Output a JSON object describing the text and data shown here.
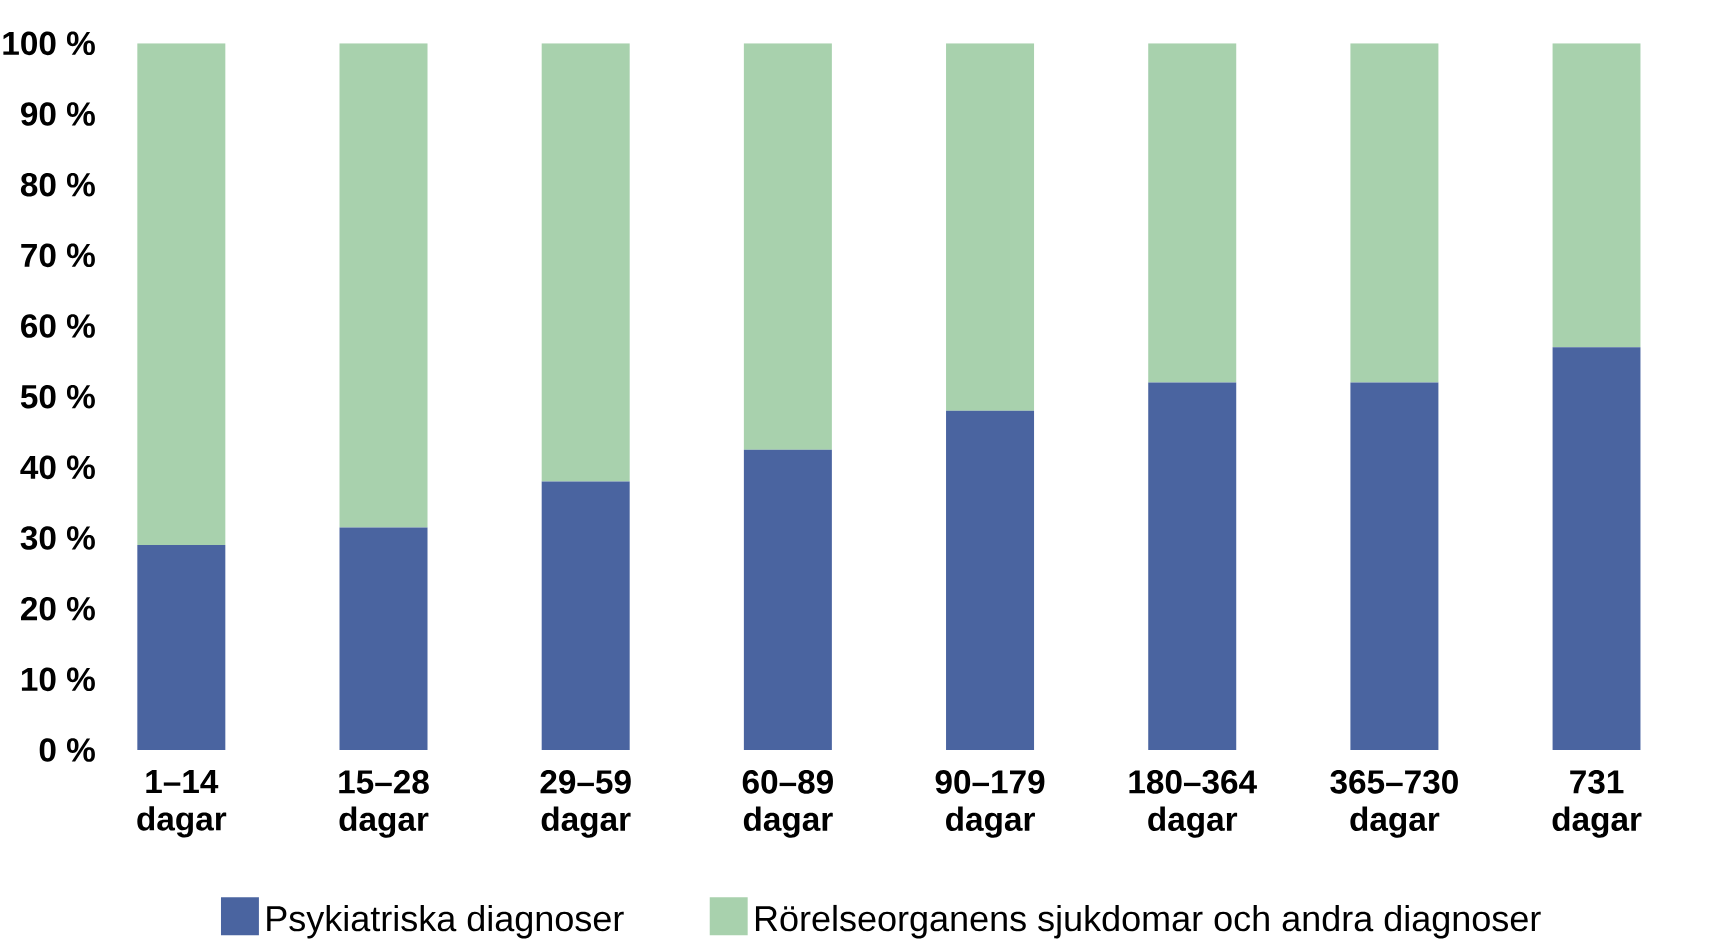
{
  "chart_data": {
    "type": "bar",
    "stacked": true,
    "categories": [
      "1–14 dagar",
      "15–28 dagar",
      "29–59 dagar",
      "60–89 dagar",
      "90–179 dagar",
      "180–364 dagar",
      "365–730 dagar",
      "731 dagar"
    ],
    "series": [
      {
        "name": "Psykiatriska diagnoser",
        "color": "#4a64a0",
        "values": [
          29,
          31.5,
          38,
          42.5,
          48,
          52,
          52,
          57
        ]
      },
      {
        "name": "Rörelseorganens sjukdomar och andra diagnoser",
        "color": "#a8d1ad",
        "values": [
          71,
          68.5,
          62,
          57.5,
          52,
          48,
          48,
          43
        ]
      }
    ],
    "ylim": [
      0,
      100
    ],
    "yticks": [
      {
        "value": 0,
        "label": "0 %"
      },
      {
        "value": 10,
        "label": "10 %"
      },
      {
        "value": 20,
        "label": "20 %"
      },
      {
        "value": 30,
        "label": "30 %"
      },
      {
        "value": 40,
        "label": "40 %"
      },
      {
        "value": 50,
        "label": "50 %"
      },
      {
        "value": 60,
        "label": "60 %"
      },
      {
        "value": 70,
        "label": "70 %"
      },
      {
        "value": 80,
        "label": "80 %"
      },
      {
        "value": 90,
        "label": "90 %"
      },
      {
        "value": 100,
        "label": "100 %"
      }
    ],
    "legend": "bottom"
  }
}
